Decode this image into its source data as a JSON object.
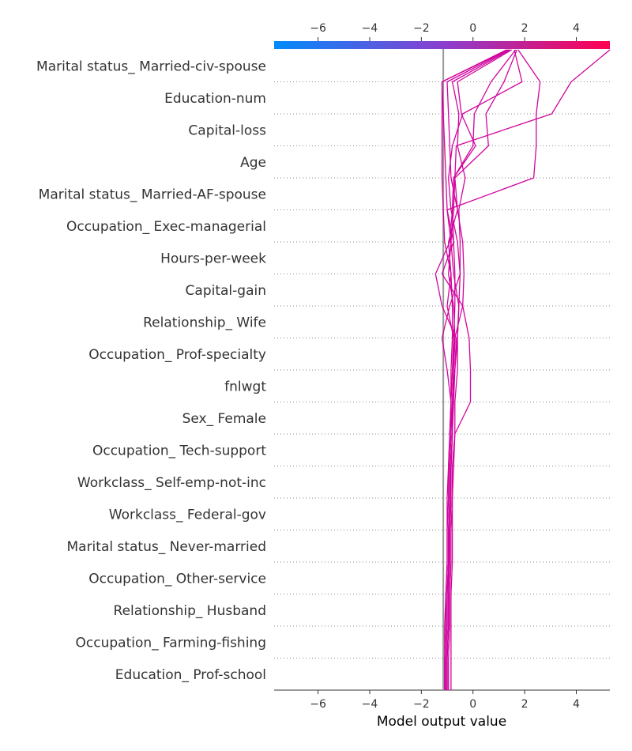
{
  "chart_data": {
    "type": "line",
    "title": "",
    "xlabel": "Model output value",
    "ylabel": "",
    "xlim": [
      -7.7,
      5.3
    ],
    "xticks": [
      -6,
      -4,
      -2,
      0,
      2,
      4
    ],
    "xtick_labels": [
      "−6",
      "−4",
      "−2",
      "0",
      "2",
      "4"
    ],
    "base_value": -1.15,
    "colorbar": {
      "stops": [
        "#008bfb",
        "#8a3fd0",
        "#ff0052"
      ],
      "range": [
        -7.7,
        5.3
      ]
    },
    "line_color": "#d1059e",
    "grid": "dotted horizontal",
    "features": [
      "Marital status_ Married-civ-spouse",
      "Education-num",
      "Capital-loss",
      "Age",
      "Marital status_ Married-AF-spouse",
      "Occupation_ Exec-managerial",
      "Hours-per-week",
      "Capital-gain",
      "Relationship_ Wife",
      "Occupation_ Prof-specialty",
      "fnlwgt",
      "Sex_ Female",
      "Occupation_ Tech-support",
      "Workclass_ Self-emp-not-inc",
      "Workclass_ Federal-gov",
      "Marital status_ Never-married",
      "Occupation_ Other-service",
      "Relationship_ Husband",
      "Occupation_ Farming-fishing",
      "Education_ Prof-school"
    ],
    "series": [
      {
        "values": [
          -1.05,
          -1.05,
          -1.0,
          -1.0,
          -0.95,
          -0.95,
          -0.9,
          -0.85,
          -0.8,
          -0.8,
          -0.75,
          -0.75,
          -0.7,
          -0.7,
          -0.75,
          -1.0,
          -1.05,
          -1.1,
          -1.15,
          -1.2,
          1.3
        ]
      },
      {
        "values": [
          -1.1,
          -1.1,
          -1.05,
          -1.05,
          -1.0,
          -1.0,
          -0.95,
          -0.95,
          -0.9,
          -0.85,
          -0.85,
          -0.8,
          -0.8,
          -0.85,
          -1.1,
          -1.15,
          -1.2,
          -1.2,
          -1.2,
          -1.2,
          1.35
        ]
      },
      {
        "values": [
          -1.0,
          -1.0,
          -0.95,
          -0.95,
          -0.95,
          -0.9,
          -0.85,
          -0.85,
          -0.8,
          -0.8,
          -0.75,
          -0.7,
          -0.4,
          -0.35,
          -0.4,
          -0.6,
          -0.85,
          -0.9,
          -0.95,
          -1.0,
          1.4
        ]
      },
      {
        "values": [
          -0.85,
          -0.85,
          -0.85,
          -0.85,
          -0.8,
          -0.8,
          -0.8,
          -0.75,
          -0.7,
          -0.7,
          -0.6,
          -0.6,
          -0.55,
          -0.5,
          -0.5,
          -0.55,
          -0.3,
          -0.6,
          -0.55,
          -0.8,
          1.45
        ]
      },
      {
        "values": [
          -0.95,
          -0.95,
          -0.9,
          -0.9,
          -0.85,
          -0.85,
          -0.8,
          -0.8,
          -0.7,
          -0.1,
          -0.1,
          -0.15,
          -0.4,
          -1.2,
          -0.75,
          -0.8,
          -0.75,
          0.1,
          -0.45,
          -0.6,
          1.5
        ]
      },
      {
        "values": [
          -1.1,
          -1.1,
          -1.1,
          -1.05,
          -1.0,
          -1.0,
          -1.0,
          -0.95,
          -0.9,
          -0.85,
          -1.0,
          -1.2,
          -0.9,
          -0.5,
          -0.6,
          -0.85,
          -0.95,
          -0.8,
          -0.4,
          1.9,
          1.6
        ]
      },
      {
        "values": [
          -1.0,
          -1.0,
          -0.95,
          -0.95,
          -0.9,
          -0.9,
          -0.85,
          -0.85,
          -0.8,
          -0.75,
          -0.7,
          -0.65,
          -1.2,
          -1.45,
          -0.9,
          -0.8,
          -0.75,
          0.0,
          0.05,
          0.7,
          1.65
        ]
      },
      {
        "values": [
          -1.05,
          -1.05,
          -1.0,
          -1.0,
          -0.95,
          -0.95,
          -0.9,
          -0.9,
          -0.85,
          -0.85,
          -0.8,
          -0.75,
          -1.0,
          -0.85,
          -0.95,
          -0.6,
          -0.7,
          0.6,
          0.5,
          1.2,
          1.7
        ]
      },
      {
        "values": [
          -1.0,
          -1.0,
          -0.95,
          -0.95,
          -0.9,
          -0.9,
          -0.85,
          -0.85,
          -0.8,
          -0.8,
          -0.7,
          -0.6,
          -0.55,
          -0.75,
          -0.85,
          -1.0,
          2.35,
          2.45,
          2.45,
          2.6,
          1.75
        ]
      },
      {
        "values": [
          -1.05,
          -1.05,
          -1.0,
          -1.0,
          -0.95,
          -0.95,
          -0.9,
          -0.9,
          -0.85,
          -0.8,
          -0.75,
          -0.7,
          -0.75,
          -0.95,
          -0.85,
          -0.75,
          -0.7,
          -0.65,
          3.05,
          3.8,
          5.3
        ]
      }
    ]
  }
}
